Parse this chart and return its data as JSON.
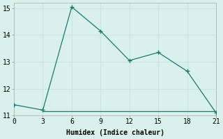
{
  "x": [
    0,
    3,
    6,
    9,
    12,
    15,
    18,
    21
  ],
  "y": [
    11.4,
    11.2,
    15.05,
    14.15,
    13.05,
    13.35,
    12.65,
    11.1
  ],
  "x_flat": [
    3,
    9,
    12,
    18,
    21
  ],
  "y_flat": [
    11.15,
    11.15,
    11.15,
    11.15,
    11.15
  ],
  "line_color": "#1a7a6e",
  "bg_color": "#d9f0ed",
  "grid_color_major": "#c8e6e2",
  "grid_color_minor": "#e8f5f3",
  "xlabel": "Humidex (Indice chaleur)",
  "xlim": [
    0,
    21
  ],
  "ylim": [
    11,
    15.2
  ],
  "xticks": [
    0,
    3,
    6,
    9,
    12,
    15,
    18,
    21
  ],
  "yticks": [
    11,
    12,
    13,
    14,
    15
  ],
  "label_fontsize": 7,
  "tick_fontsize": 7
}
